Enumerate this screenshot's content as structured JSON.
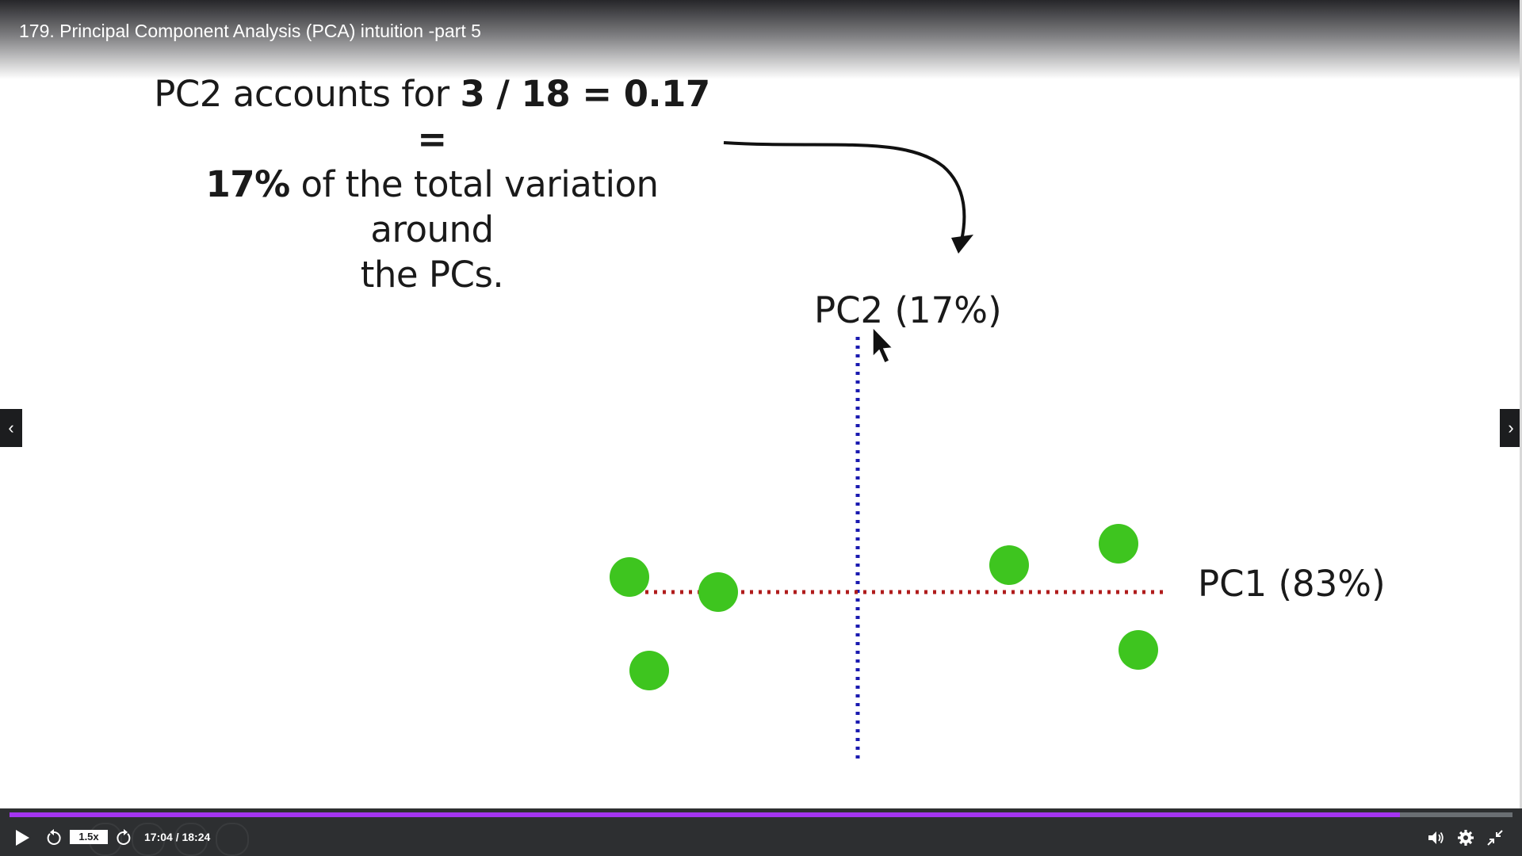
{
  "header": {
    "title": "179. Principal Component Analysis (PCA) intuition -part 5"
  },
  "slide": {
    "caption": {
      "line1_prefix": "PC2 accounts for ",
      "line1_bold": "3 / 18 = 0.17 =",
      "line2_bold": "17%",
      "line2_suffix": " of the total variation around",
      "line3": "the PCs."
    },
    "pc2_label": "PC2 (17%)",
    "pc1_label": "PC1 (83%)",
    "colors": {
      "points": "#3ec51f",
      "pc1_axis": "#b01c1c",
      "pc2_axis": "#1a1ab0"
    }
  },
  "nav": {
    "prev_icon": "chevron-left-icon",
    "next_icon": "chevron-right-icon"
  },
  "player": {
    "progress": 0.925,
    "speed": "1.5x",
    "time": "17:04 / 18:24",
    "colors": {
      "progress": "#a435f0",
      "bar": "#2d2f31"
    }
  }
}
